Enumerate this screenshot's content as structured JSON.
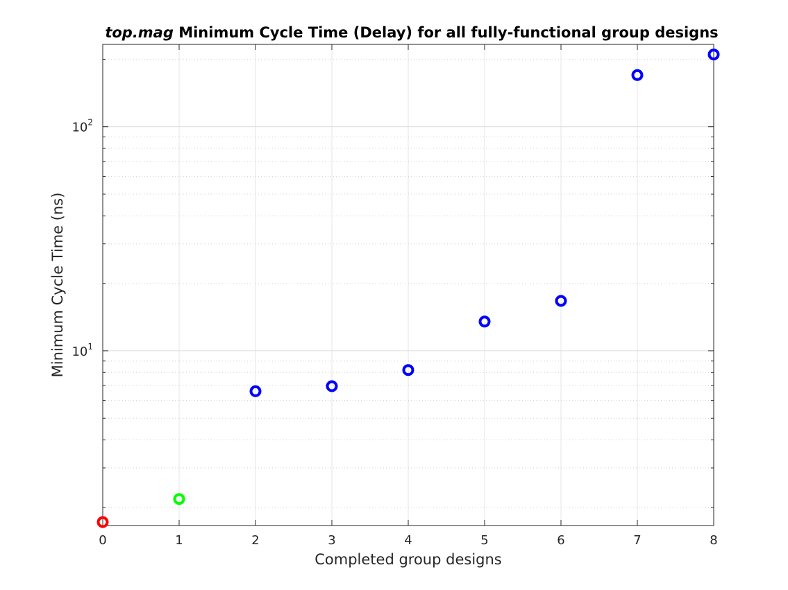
{
  "chart_data": {
    "type": "scatter",
    "title_italic": "top.mag",
    "title_rest": " Minimum Cycle Time (Delay) for all fully-functional group designs",
    "xlabel": "Completed group designs",
    "ylabel": "Minimum Cycle Time (ns)",
    "x_scale": "linear",
    "y_scale": "log",
    "xlim": [
      0,
      8
    ],
    "ylim": [
      1.66,
      233
    ],
    "x_ticks": [
      0,
      1,
      2,
      3,
      4,
      5,
      6,
      7,
      8
    ],
    "y_tick_labels": [
      {
        "value": 10,
        "base": "10",
        "exponent": "1"
      },
      {
        "value": 100,
        "base": "10",
        "exponent": "2"
      }
    ],
    "grid": true,
    "minor_grid": true,
    "marker": "circle",
    "points": [
      {
        "x": 0,
        "y": 1.72,
        "color": "#ff0000"
      },
      {
        "x": 1,
        "y": 2.18,
        "color": "#00ff00"
      },
      {
        "x": 2,
        "y": 6.6,
        "color": "#0000ff"
      },
      {
        "x": 3,
        "y": 6.95,
        "color": "#0000ff"
      },
      {
        "x": 4,
        "y": 8.2,
        "color": "#0000ff"
      },
      {
        "x": 5,
        "y": 13.5,
        "color": "#0000ff"
      },
      {
        "x": 6,
        "y": 16.7,
        "color": "#0000ff"
      },
      {
        "x": 7,
        "y": 170,
        "color": "#0000ff"
      },
      {
        "x": 8,
        "y": 210,
        "color": "#0000ff"
      }
    ],
    "colors": {
      "grid": "#e6e6e6",
      "axis": "#262626"
    }
  }
}
